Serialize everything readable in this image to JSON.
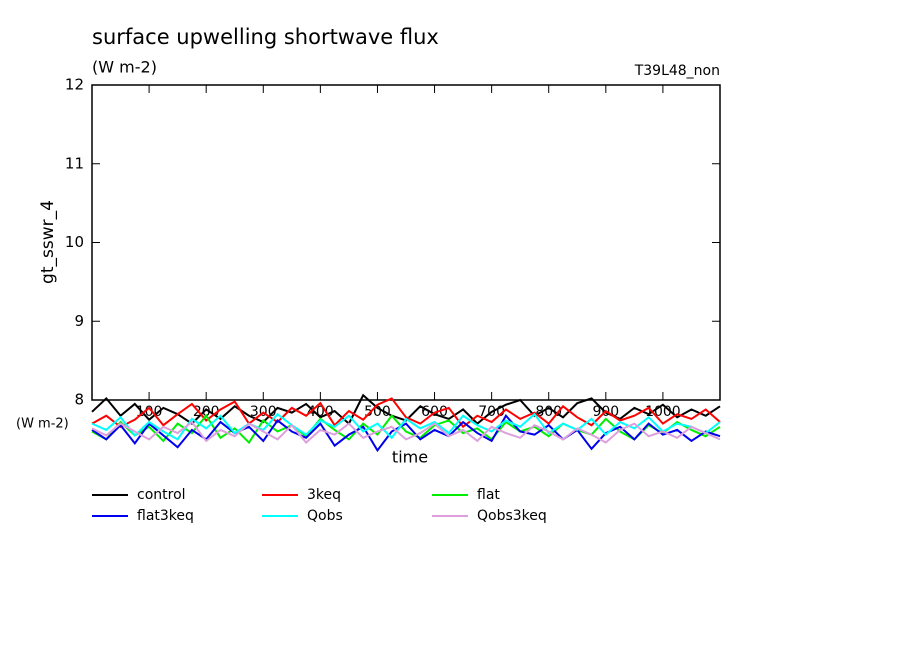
{
  "chart_data": {
    "type": "line",
    "title": "surface upwelling shortwave flux",
    "subtitle": "(W m-2)",
    "annotation": "T39L48_non",
    "ylabel": "gt_sswr_4",
    "xlabel": "time",
    "xunit": "(W m-2)",
    "ylim": [
      8,
      12
    ],
    "yticks": [
      8,
      9,
      10,
      11,
      12
    ],
    "xlim": [
      0,
      1100
    ],
    "xticks": [
      100,
      200,
      300,
      400,
      500,
      600,
      700,
      800,
      900,
      1000
    ],
    "x": [
      0,
      25,
      50,
      75,
      100,
      125,
      150,
      175,
      200,
      225,
      250,
      275,
      300,
      325,
      350,
      375,
      400,
      425,
      450,
      475,
      500,
      525,
      550,
      575,
      600,
      625,
      650,
      675,
      700,
      725,
      750,
      775,
      800,
      825,
      850,
      875,
      900,
      925,
      950,
      975,
      1000,
      1025,
      1050,
      1075,
      1100
    ],
    "series": [
      {
        "name": "control",
        "color": "#000000",
        "values": [
          7.85,
          8.02,
          7.8,
          7.95,
          7.75,
          7.9,
          7.82,
          7.7,
          7.88,
          7.76,
          7.92,
          7.8,
          7.72,
          7.9,
          7.84,
          7.95,
          7.78,
          7.86,
          7.7,
          8.06,
          7.9,
          7.8,
          7.74,
          7.92,
          7.82,
          7.76,
          7.88,
          7.7,
          7.85,
          7.94,
          8.0,
          7.8,
          7.9,
          7.78,
          7.96,
          8.02,
          7.84,
          7.76,
          7.9,
          7.82,
          7.94,
          7.78,
          7.88,
          7.8,
          7.92
        ]
      },
      {
        "name": "3keq",
        "color": "#ff0000",
        "values": [
          7.7,
          7.8,
          7.66,
          7.75,
          7.9,
          7.68,
          7.82,
          7.95,
          7.74,
          7.88,
          7.98,
          7.7,
          7.84,
          7.72,
          7.9,
          7.8,
          7.96,
          7.68,
          7.86,
          7.75,
          7.94,
          8.02,
          7.78,
          7.7,
          7.84,
          7.9,
          7.66,
          7.8,
          7.72,
          7.88,
          7.76,
          7.84,
          7.7,
          7.92,
          7.78,
          7.68,
          7.86,
          7.74,
          7.8,
          7.9,
          7.7,
          7.82,
          7.76,
          7.88,
          7.72
        ]
      },
      {
        "name": "flat",
        "color": "#00ee00",
        "values": [
          7.6,
          7.5,
          7.72,
          7.55,
          7.66,
          7.48,
          7.7,
          7.58,
          7.8,
          7.52,
          7.64,
          7.46,
          7.74,
          7.6,
          7.68,
          7.54,
          7.76,
          7.62,
          7.5,
          7.7,
          7.56,
          7.8,
          7.6,
          7.52,
          7.68,
          7.74,
          7.58,
          7.64,
          7.5,
          7.72,
          7.6,
          7.66,
          7.54,
          7.7,
          7.62,
          7.56,
          7.76,
          7.6,
          7.5,
          7.68,
          7.58,
          7.72,
          7.62,
          7.54,
          7.66
        ]
      },
      {
        "name": "flat3keq",
        "color": "#0000ee",
        "values": [
          7.62,
          7.5,
          7.68,
          7.45,
          7.7,
          7.55,
          7.4,
          7.62,
          7.5,
          7.72,
          7.58,
          7.66,
          7.48,
          7.74,
          7.6,
          7.52,
          7.7,
          7.42,
          7.56,
          7.66,
          7.36,
          7.6,
          7.7,
          7.5,
          7.62,
          7.54,
          7.72,
          7.58,
          7.48,
          7.8,
          7.6,
          7.56,
          7.68,
          7.5,
          7.62,
          7.38,
          7.58,
          7.66,
          7.5,
          7.7,
          7.56,
          7.62,
          7.48,
          7.6,
          7.54
        ]
      },
      {
        "name": "Qobs",
        "color": "#00ffff",
        "values": [
          7.7,
          7.62,
          7.78,
          7.55,
          7.72,
          7.6,
          7.5,
          7.76,
          7.64,
          7.8,
          7.58,
          7.7,
          7.62,
          7.82,
          7.68,
          7.56,
          7.74,
          7.66,
          7.8,
          7.6,
          7.7,
          7.52,
          7.76,
          7.64,
          7.72,
          7.58,
          7.8,
          7.68,
          7.6,
          7.74,
          7.66,
          7.82,
          7.58,
          7.7,
          7.62,
          7.76,
          7.56,
          7.72,
          7.64,
          7.78,
          7.6,
          7.7,
          7.66,
          7.58,
          7.72
        ]
      },
      {
        "name": "Qobs3keq",
        "color": "#dda0dd",
        "values": [
          7.64,
          7.55,
          7.7,
          7.6,
          7.5,
          7.66,
          7.58,
          7.72,
          7.48,
          7.62,
          7.54,
          7.7,
          7.6,
          7.5,
          7.68,
          7.46,
          7.62,
          7.56,
          7.7,
          7.52,
          7.6,
          7.66,
          7.5,
          7.58,
          7.7,
          7.54,
          7.62,
          7.48,
          7.66,
          7.58,
          7.52,
          7.68,
          7.6,
          7.5,
          7.64,
          7.56,
          7.46,
          7.62,
          7.7,
          7.54,
          7.6,
          7.52,
          7.66,
          7.58,
          7.5
        ]
      }
    ]
  }
}
